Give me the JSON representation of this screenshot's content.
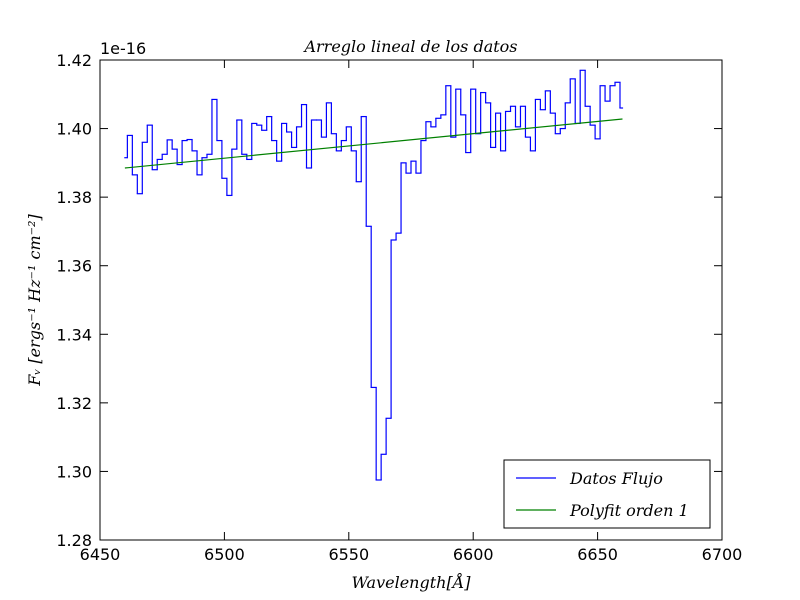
{
  "chart_data": {
    "type": "step",
    "title": "Arreglo lineal de los datos",
    "xlabel": "Wavelength[Å]",
    "ylabel": "Fᵥ [ergs⁻¹ Hz⁻¹ cm⁻²]",
    "y_offset_label": "1e-16",
    "xlim": [
      6450,
      6700
    ],
    "ylim": [
      1.28,
      1.42
    ],
    "xticks": [
      6450,
      6500,
      6550,
      6600,
      6650,
      6700
    ],
    "yticks": [
      1.28,
      {
        "value": 1.3,
        "label": "1.30"
      },
      1.32,
      1.34,
      1.36,
      1.38,
      {
        "value": 1.4,
        "label": "1.40"
      },
      1.42
    ],
    "legend": "lower right",
    "series": [
      {
        "name": "Datos Flujo",
        "color": "#0000ff",
        "type": "step",
        "x": [
          6460,
          6462,
          6464,
          6466,
          6468,
          6470,
          6472,
          6474,
          6476,
          6478,
          6480,
          6482,
          6484,
          6486,
          6488,
          6490,
          6492,
          6494,
          6496,
          6498,
          6500,
          6502,
          6504,
          6506,
          6508,
          6510,
          6512,
          6514,
          6516,
          6518,
          6520,
          6522,
          6524,
          6526,
          6528,
          6530,
          6532,
          6534,
          6536,
          6538,
          6540,
          6542,
          6544,
          6546,
          6548,
          6550,
          6552,
          6554,
          6556,
          6558,
          6560,
          6562,
          6564,
          6566,
          6568,
          6570,
          6572,
          6574,
          6576,
          6578,
          6580,
          6582,
          6584,
          6586,
          6588,
          6590,
          6592,
          6594,
          6596,
          6598,
          6600,
          6602,
          6604,
          6606,
          6608,
          6610,
          6612,
          6614,
          6616,
          6618,
          6620,
          6622,
          6624,
          6626,
          6628,
          6630,
          6632,
          6634,
          6636,
          6638,
          6640,
          6642,
          6644,
          6646,
          6648,
          6650,
          6652,
          6654,
          6656,
          6658,
          6660
        ],
        "values": [
          1.3915,
          1.398,
          1.3865,
          1.381,
          1.396,
          1.401,
          1.388,
          1.391,
          1.3925,
          1.3967,
          1.394,
          1.3895,
          1.3965,
          1.3968,
          1.3935,
          1.3865,
          1.3915,
          1.3925,
          1.4085,
          1.3965,
          1.3855,
          1.3805,
          1.394,
          1.4025,
          1.3925,
          1.391,
          1.4015,
          1.401,
          1.3995,
          1.4035,
          1.3965,
          1.3905,
          1.4015,
          1.399,
          1.3945,
          1.4005,
          1.407,
          1.3885,
          1.4025,
          1.4025,
          1.3975,
          1.4075,
          1.3985,
          1.3935,
          1.3965,
          1.4005,
          1.3935,
          1.3845,
          1.4035,
          1.3715,
          1.3245,
          1.2975,
          1.305,
          1.3155,
          1.3675,
          1.3695,
          1.39,
          1.387,
          1.3905,
          1.387,
          1.3965,
          1.402,
          1.4005,
          1.403,
          1.404,
          1.4125,
          1.3975,
          1.4115,
          1.404,
          1.393,
          1.4115,
          1.3985,
          1.4105,
          1.4075,
          1.3945,
          1.4045,
          1.3935,
          1.405,
          1.4065,
          1.4005,
          1.4065,
          1.3975,
          1.3935,
          1.4085,
          1.4055,
          1.411,
          1.4045,
          1.3985,
          1.4,
          1.4075,
          1.4145,
          1.4015,
          1.417,
          1.4065,
          1.401,
          1.397,
          1.4125,
          1.408,
          1.4125,
          1.4135,
          1.406
        ]
      },
      {
        "name": "Polyfit orden 1",
        "color": "#008000",
        "type": "line",
        "x": [
          6460,
          6660
        ],
        "values": [
          1.3885,
          1.4028
        ]
      }
    ]
  }
}
